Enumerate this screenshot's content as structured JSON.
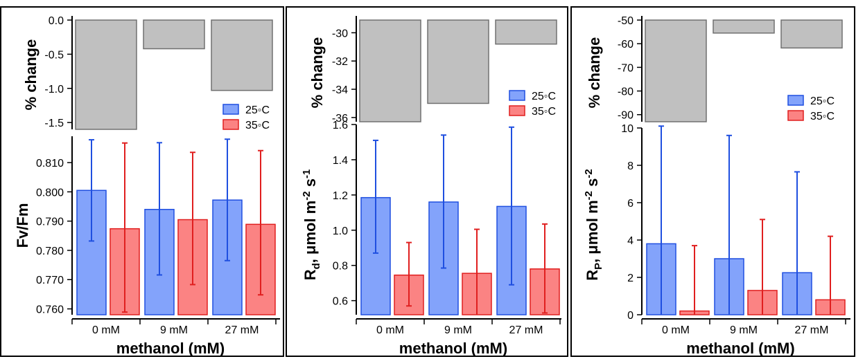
{
  "colors": {
    "s25_fill": "#83a3fb",
    "s25_stroke": "#1f4fe0",
    "s35_fill": "#fb8383",
    "s35_stroke": "#e01f1f",
    "change_fill": "#c0c0c0",
    "change_stroke": "#707070"
  },
  "chart_data": [
    {
      "type": "bar",
      "title": "",
      "xlabel": "methanol (mM)",
      "categories": [
        "0 mM",
        "9 mM",
        "27 mM"
      ],
      "legend": [
        "25◦C",
        "35◦C"
      ],
      "legend_position": "bottom-right of top panel",
      "top_panel": {
        "ylabel": "% change",
        "ylim": [
          -1.6,
          0
        ],
        "ticks": [
          0.0,
          -0.5,
          -1.0,
          -1.5
        ],
        "tick_labels": [
          "0.0",
          "-0.5",
          "-1.0",
          "-1.5"
        ],
        "values": [
          -1.6,
          -0.42,
          -1.03
        ]
      },
      "bottom_panel": {
        "ylabel": "Fv/Fm",
        "ylim": [
          0.758,
          0.819
        ],
        "ticks": [
          0.76,
          0.77,
          0.78,
          0.79,
          0.8,
          0.81
        ],
        "tick_labels": [
          "0.760",
          "0.770",
          "0.780",
          "0.790",
          "0.800",
          "0.810"
        ],
        "series": [
          {
            "name": "25◦C",
            "values": [
              0.8005,
              0.794,
              0.7972
            ],
            "err_low": [
              0.7832,
              0.7716,
              0.7765
            ],
            "err_high": [
              0.8178,
              0.8168,
              0.818
            ]
          },
          {
            "name": "35◦C",
            "values": [
              0.7874,
              0.7905,
              0.7889
            ],
            "err_low": [
              0.7589,
              0.7683,
              0.7648
            ],
            "err_high": [
              0.8167,
              0.8135,
              0.8141
            ]
          }
        ]
      }
    },
    {
      "type": "bar",
      "title": "",
      "xlabel": "methanol (mM)",
      "categories": [
        "0 mM",
        "9 mM",
        "27 mM"
      ],
      "legend": [
        "25◦C",
        "35◦C"
      ],
      "legend_position": "bottom-right of top panel",
      "top_panel": {
        "ylabel": "% change",
        "ylim": [
          -36.3,
          -29.1
        ],
        "ticks": [
          -30,
          -32,
          -34,
          -36
        ],
        "tick_labels": [
          "-30",
          "-32",
          "-34",
          "-36"
        ],
        "values": [
          -36.3,
          -35.0,
          -30.8
        ]
      },
      "bottom_panel": {
        "ylabel_main": "R",
        "ylabel_sub": "d",
        "ylabel_rest": ", μmol m",
        "ylabel_sup1": "-2",
        "ylabel_mid": " s",
        "ylabel_sup2": "-1",
        "ylim": [
          0.52,
          1.6
        ],
        "ticks": [
          0.6,
          0.8,
          1.0,
          1.2,
          1.4,
          1.6
        ],
        "tick_labels": [
          "0.6",
          "0.8",
          "1.0",
          "1.2",
          "1.4",
          "1.6"
        ],
        "series": [
          {
            "name": "25◦C",
            "values": [
              1.185,
              1.16,
              1.135
            ],
            "err_low": [
              0.87,
              0.785,
              0.69
            ],
            "err_high": [
              1.51,
              1.54,
              1.585
            ]
          },
          {
            "name": "35◦C",
            "values": [
              0.745,
              0.755,
              0.78
            ],
            "err_low": [
              0.57,
              0.51,
              0.53
            ],
            "err_high": [
              0.93,
              1.005,
              1.035
            ]
          }
        ]
      }
    },
    {
      "type": "bar",
      "title": "",
      "xlabel": "methanol (mM)",
      "categories": [
        "0 mM",
        "9 mM",
        "27 mM"
      ],
      "legend": [
        "25◦C",
        "35◦C"
      ],
      "legend_position": "bottom-right of top panel",
      "top_panel": {
        "ylabel": "% change",
        "ylim": [
          -93,
          -50
        ],
        "ticks": [
          -50,
          -60,
          -70,
          -80,
          -90
        ],
        "tick_labels": [
          "-50",
          "-60",
          "-70",
          "-80",
          "-90"
        ],
        "values": [
          -93.0,
          -55.5,
          -61.8
        ]
      },
      "bottom_panel": {
        "ylabel_main": "R",
        "ylabel_sub": "P",
        "ylabel_rest": ", μmol m",
        "ylabel_sup1": "-2",
        "ylabel_mid": " s",
        "ylabel_sup2": "-2",
        "ylim": [
          0,
          10
        ],
        "ticks": [
          0,
          2,
          4,
          6,
          8,
          10
        ],
        "tick_labels": [
          "0",
          "2",
          "4",
          "6",
          "8",
          "10"
        ],
        "series": [
          {
            "name": "25◦C",
            "values": [
              3.8,
              3.0,
              2.25
            ],
            "err_low": [
              0,
              0,
              0
            ],
            "err_high": [
              10.1,
              9.6,
              7.65
            ]
          },
          {
            "name": "35◦C",
            "values": [
              0.2,
              1.3,
              0.8
            ],
            "err_low": [
              0,
              0,
              0
            ],
            "err_high": [
              3.7,
              5.1,
              4.2
            ]
          }
        ]
      }
    }
  ]
}
